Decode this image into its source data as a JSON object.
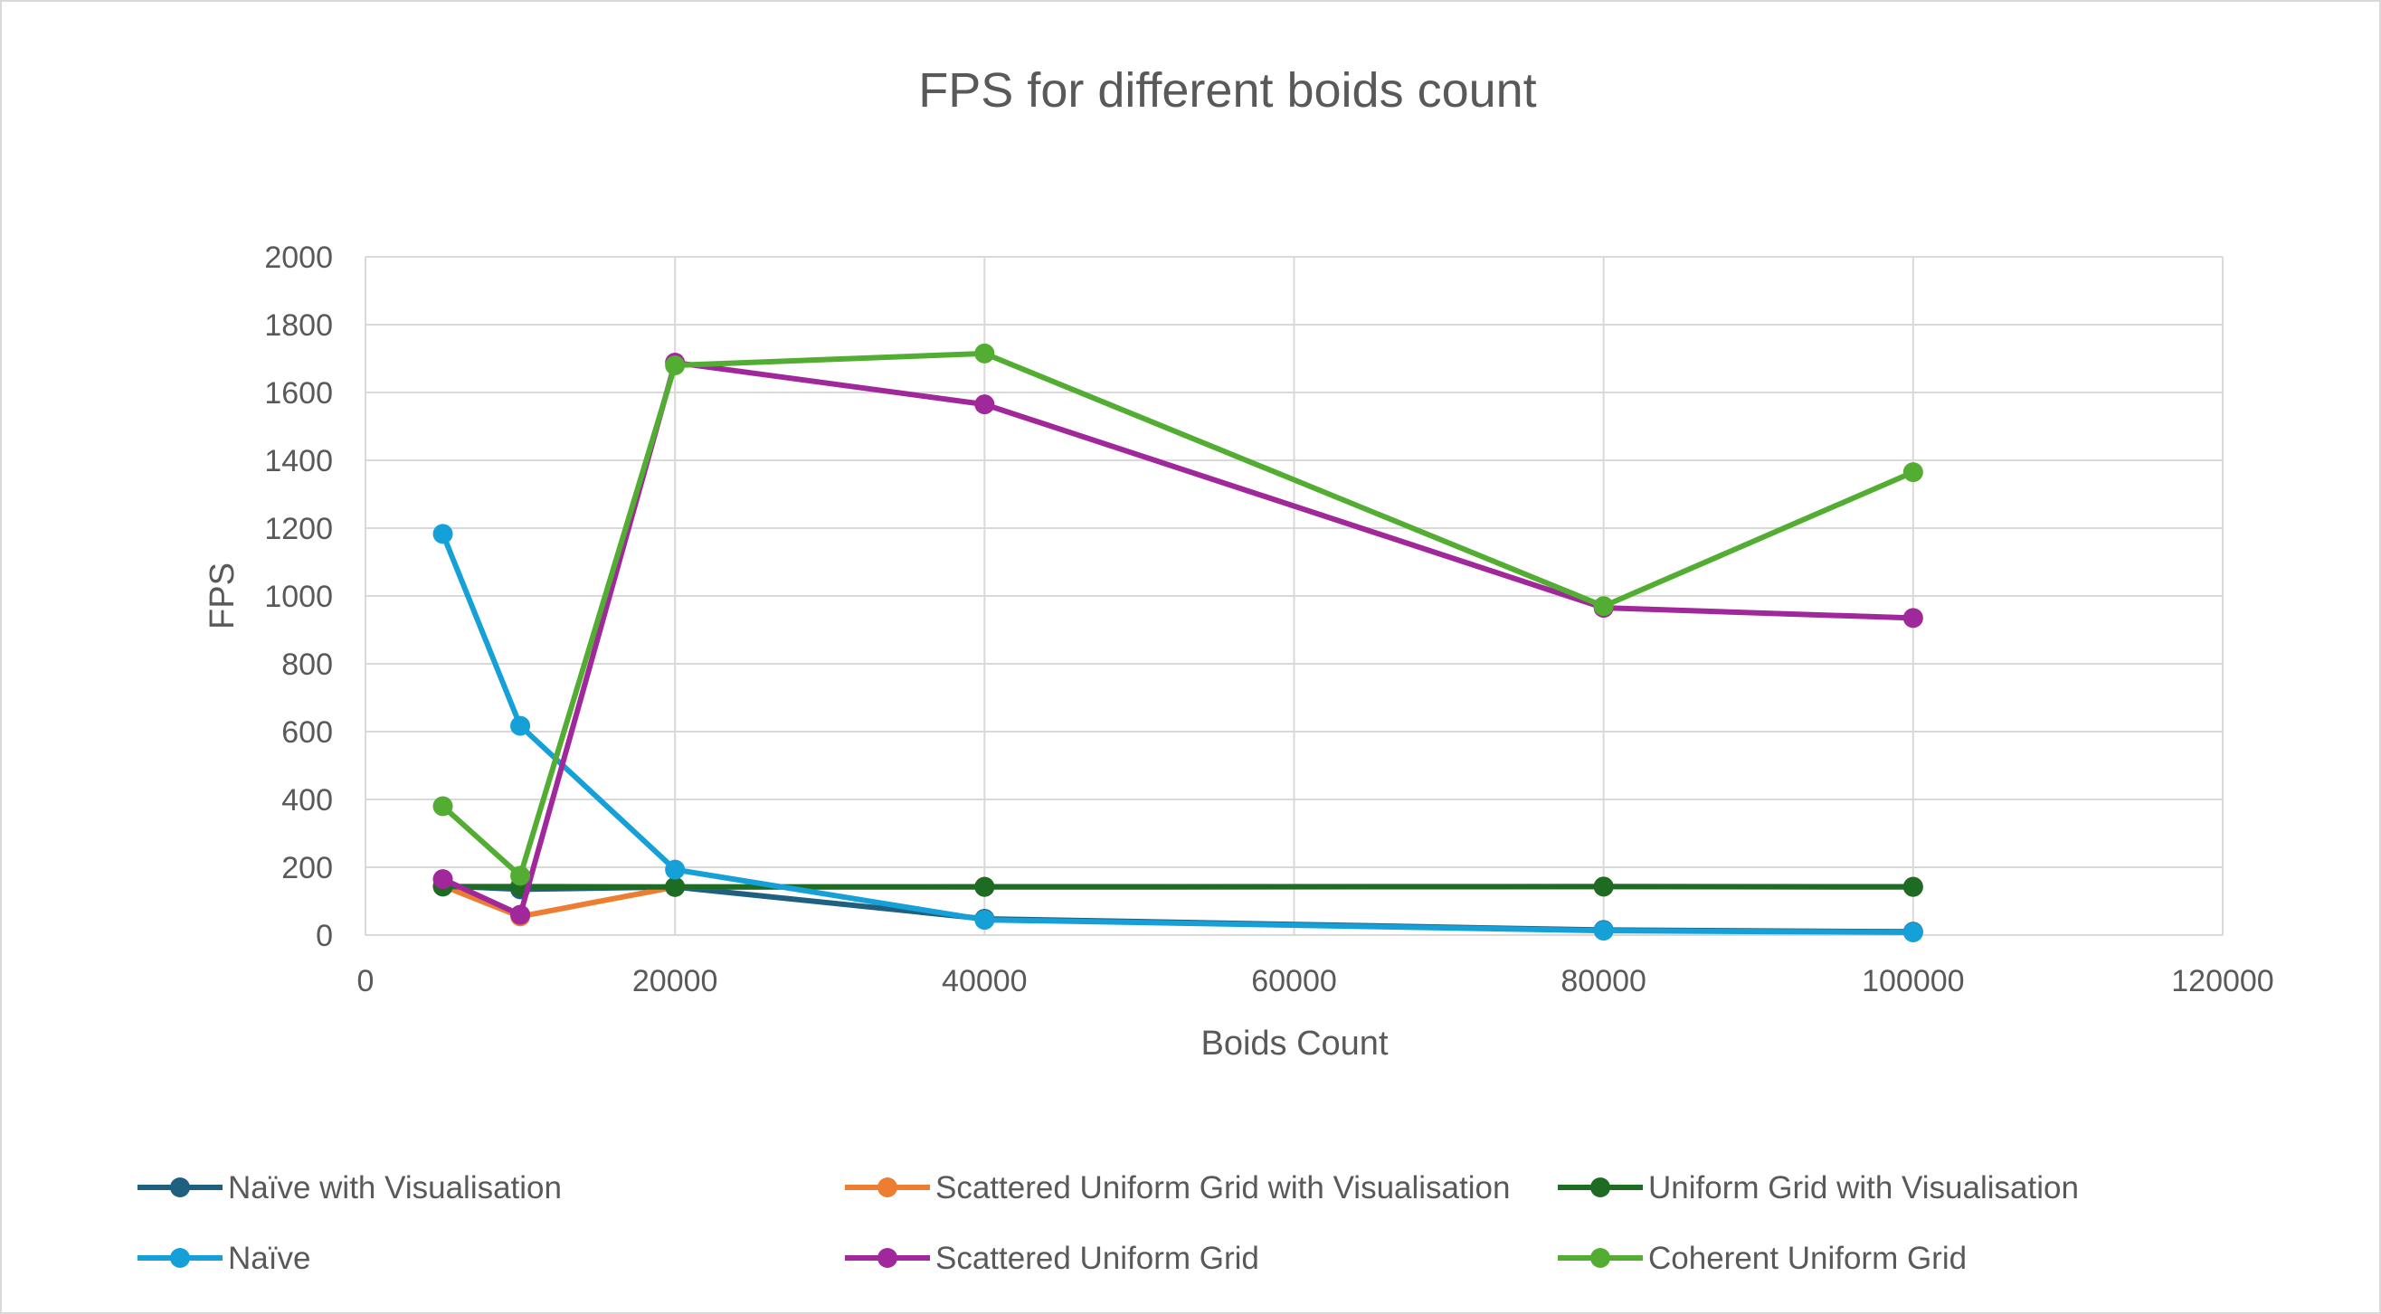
{
  "chart_data": {
    "type": "scatter",
    "title": "FPS for different boids count",
    "xlabel": "Boids Count",
    "ylabel": "FPS",
    "xlim": [
      0,
      120000
    ],
    "ylim": [
      0,
      2000
    ],
    "x_ticks": [
      0,
      20000,
      40000,
      60000,
      80000,
      100000,
      120000
    ],
    "y_ticks": [
      0,
      200,
      400,
      600,
      800,
      1000,
      1200,
      1400,
      1600,
      1800,
      2000
    ],
    "grid": true,
    "legend_position": "bottom",
    "series": [
      {
        "name": "Naïve with Visualisation",
        "color": "#1f5f7f",
        "x": [
          5000,
          10000,
          20000,
          40000,
          80000,
          100000
        ],
        "y": [
          145,
          135,
          142,
          48,
          15,
          10
        ]
      },
      {
        "name": "Scattered Uniform Grid with Visualisation",
        "color": "#ed7d31",
        "x": [
          5000,
          10000,
          20000,
          40000,
          80000,
          100000
        ],
        "y": [
          145,
          55,
          142,
          143,
          143,
          143
        ]
      },
      {
        "name": "Uniform Grid with Visualisation",
        "color": "#1e6b24",
        "x": [
          5000,
          10000,
          20000,
          40000,
          80000,
          100000
        ],
        "y": [
          143,
          143,
          142,
          142,
          143,
          142
        ]
      },
      {
        "name": "Naïve",
        "color": "#15a0d8",
        "x": [
          5000,
          10000,
          20000,
          40000,
          80000,
          100000
        ],
        "y": [
          1183,
          617,
          193,
          45,
          13,
          8
        ]
      },
      {
        "name": "Scattered Uniform Grid",
        "color": "#a0289a",
        "x": [
          5000,
          10000,
          20000,
          40000,
          80000,
          100000
        ],
        "y": [
          165,
          60,
          1688,
          1565,
          965,
          935
        ]
      },
      {
        "name": "Coherent Uniform Grid",
        "color": "#53ad32",
        "x": [
          5000,
          10000,
          20000,
          40000,
          80000,
          100000
        ],
        "y": [
          380,
          175,
          1680,
          1715,
          970,
          1365
        ]
      }
    ]
  }
}
